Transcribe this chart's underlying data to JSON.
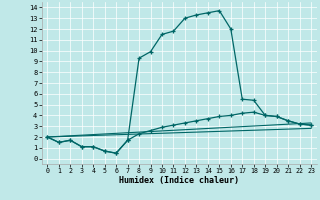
{
  "xlabel": "Humidex (Indice chaleur)",
  "bg_color": "#c0e8e8",
  "line_color": "#006666",
  "xlim": [
    -0.5,
    23.5
  ],
  "ylim": [
    -0.5,
    14.5
  ],
  "xticks": [
    0,
    1,
    2,
    3,
    4,
    5,
    6,
    7,
    8,
    9,
    10,
    11,
    12,
    13,
    14,
    15,
    16,
    17,
    18,
    19,
    20,
    21,
    22,
    23
  ],
  "yticks": [
    0,
    1,
    2,
    3,
    4,
    5,
    6,
    7,
    8,
    9,
    10,
    11,
    12,
    13,
    14
  ],
  "line_main_x": [
    0,
    1,
    2,
    3,
    4,
    5,
    6,
    7,
    8,
    9,
    10,
    11,
    12,
    13,
    14,
    15,
    16,
    17,
    18,
    19,
    20,
    21,
    22,
    23
  ],
  "line_main_y": [
    2.0,
    1.5,
    1.7,
    1.1,
    1.1,
    0.7,
    0.5,
    1.7,
    9.3,
    9.9,
    11.5,
    11.8,
    13.0,
    13.3,
    13.5,
    13.7,
    12.0,
    5.5,
    5.4,
    4.0,
    3.9,
    3.5,
    3.2,
    3.1
  ],
  "line2_x": [
    0,
    1,
    2,
    3,
    4,
    5,
    6,
    7,
    8,
    9,
    10,
    11,
    12,
    13,
    14,
    15,
    16,
    17,
    18,
    19,
    20,
    21,
    22,
    23
  ],
  "line2_y": [
    2.0,
    1.5,
    1.7,
    1.1,
    1.1,
    0.7,
    0.5,
    1.7,
    2.3,
    2.6,
    2.9,
    3.1,
    3.3,
    3.5,
    3.7,
    3.9,
    4.0,
    4.2,
    4.3,
    4.0,
    3.9,
    3.5,
    3.2,
    3.1
  ],
  "line3_x": [
    0,
    23
  ],
  "line3_y": [
    2.0,
    3.3
  ],
  "line4_x": [
    0,
    23
  ],
  "line4_y": [
    2.0,
    2.8
  ]
}
